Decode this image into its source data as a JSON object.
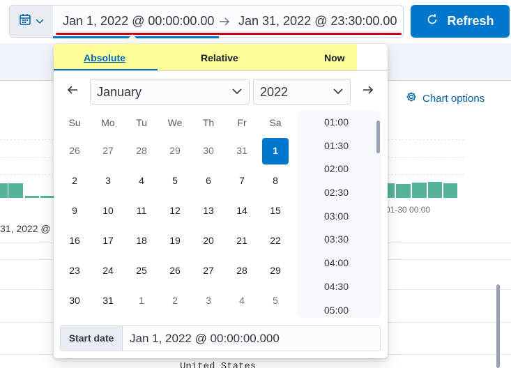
{
  "superdate": {
    "start": "Jan 1, 2022 @ 00:00:00.00",
    "end": "Jan 31, 2022 @ 23:30:00.00",
    "refresh_label": "Refresh"
  },
  "background": {
    "chart_options_label": "Chart options",
    "tick_right": "01-30 00:00",
    "tick_left": "31, 2022 @",
    "country": "United States"
  },
  "popover": {
    "tabs": [
      "Absolute",
      "Relative",
      "Now"
    ],
    "month": "January",
    "year": "2022",
    "weekdays": [
      "Su",
      "Mo",
      "Tu",
      "We",
      "Th",
      "Fr",
      "Sa"
    ],
    "weeks": [
      [
        "26",
        "27",
        "28",
        "29",
        "30",
        "31",
        "1"
      ],
      [
        "2",
        "3",
        "4",
        "5",
        "6",
        "7",
        "8"
      ],
      [
        "9",
        "10",
        "11",
        "12",
        "13",
        "14",
        "15"
      ],
      [
        "16",
        "17",
        "18",
        "19",
        "20",
        "21",
        "22"
      ],
      [
        "23",
        "24",
        "25",
        "26",
        "27",
        "28",
        "29"
      ],
      [
        "30",
        "31",
        "1",
        "2",
        "3",
        "4",
        "5"
      ]
    ],
    "times": [
      "01:00",
      "01:30",
      "02:00",
      "02:30",
      "03:00",
      "03:30",
      "04:00",
      "04:30",
      "05:00"
    ],
    "start_label": "Start date",
    "start_value": "Jan 1, 2022 @ 00:00:00.000"
  },
  "colors": {
    "primary": "#0077cc",
    "tab_highlight": "#fdfd99",
    "bar": "#54b399",
    "invalid_underline": "#d0021b"
  }
}
